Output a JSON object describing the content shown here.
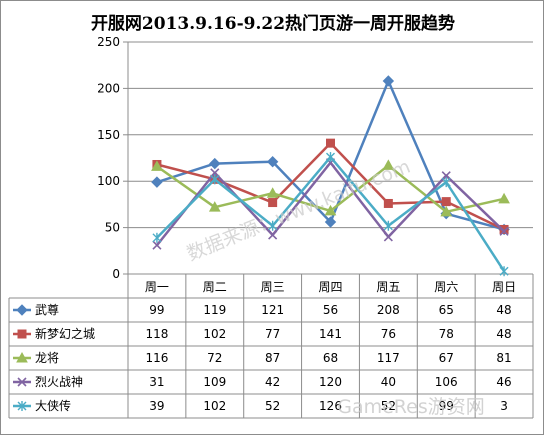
{
  "chart_data": {
    "type": "line",
    "title": "开服网2013.9.16-9.22热门页游一周开服趋势",
    "categories": [
      "周一",
      "周二",
      "周三",
      "周四",
      "周五",
      "周六",
      "周日"
    ],
    "ylim": [
      0,
      250
    ],
    "yticks": [
      0,
      50,
      100,
      150,
      200,
      250
    ],
    "grid": "horizontal",
    "legend": "data-table-below",
    "series": [
      {
        "name": "武尊",
        "values": [
          99,
          119,
          121,
          56,
          208,
          65,
          48
        ],
        "color": "#4f81bd",
        "marker": "diamond"
      },
      {
        "name": "新梦幻之城",
        "values": [
          118,
          102,
          77,
          141,
          76,
          78,
          48
        ],
        "color": "#c0504d",
        "marker": "square"
      },
      {
        "name": "龙将",
        "values": [
          116,
          72,
          87,
          68,
          117,
          67,
          81
        ],
        "color": "#9bbb59",
        "marker": "triangle"
      },
      {
        "name": "烈火战神",
        "values": [
          31,
          109,
          42,
          120,
          40,
          106,
          46
        ],
        "color": "#8064a2",
        "marker": "x"
      },
      {
        "name": "大侠传",
        "values": [
          39,
          102,
          52,
          126,
          52,
          99,
          3
        ],
        "color": "#4bacc6",
        "marker": "star"
      }
    ]
  },
  "watermarks": [
    "数据来源：www.kaifu.com",
    "GameRes游资网"
  ]
}
